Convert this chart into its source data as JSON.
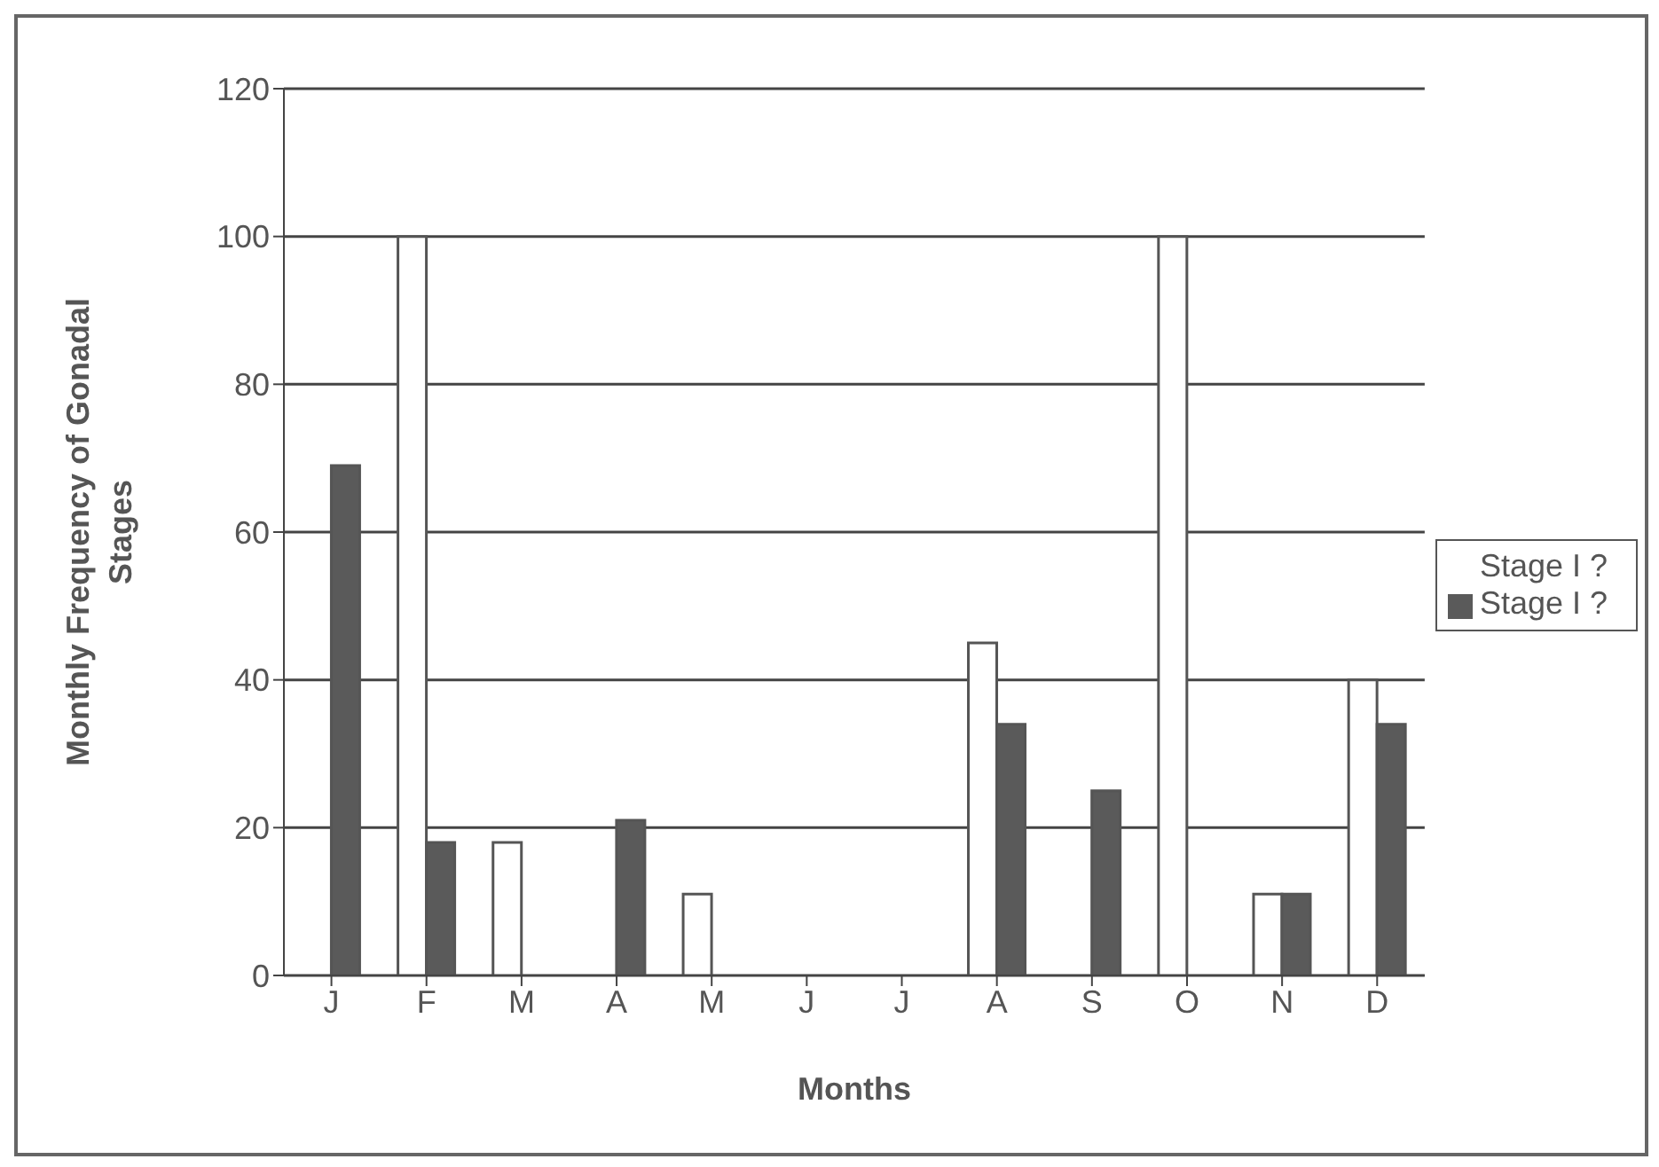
{
  "chart_data": {
    "type": "bar",
    "xlabel": "Months",
    "ylabel": "Monthly Frequency of Gonadal Stages",
    "categories": [
      "J",
      "F",
      "M",
      "A",
      "M",
      "J",
      "J",
      "A",
      "S",
      "O",
      "N",
      "D"
    ],
    "series": [
      {
        "name": "Stage I ?",
        "color": "#ffffff",
        "values": [
          0,
          100,
          18,
          0,
          11,
          0,
          0,
          45,
          0,
          100,
          11,
          40
        ]
      },
      {
        "name": "Stage I ?",
        "color": "#5a5a5a",
        "values": [
          69,
          18,
          0,
          21,
          0,
          0,
          0,
          34,
          25,
          0,
          11,
          34
        ]
      }
    ],
    "ylim": [
      0,
      120
    ],
    "yticks": [
      0,
      20,
      40,
      60,
      80,
      100,
      120
    ],
    "grid": "y",
    "legend": "right"
  }
}
